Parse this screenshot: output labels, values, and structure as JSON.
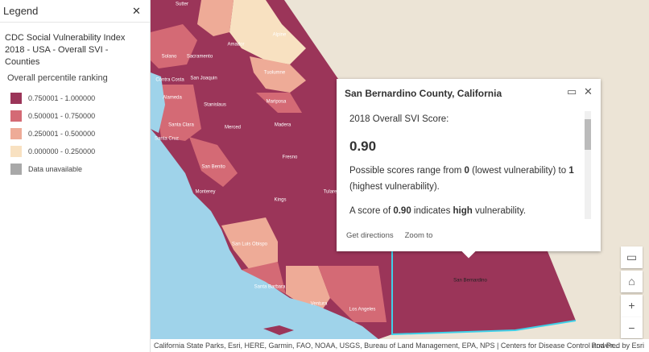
{
  "legend": {
    "title": "Legend",
    "layer_title": "CDC Social Vulnerability Index 2018 - USA - Overall SVI - Counties",
    "field": "Overall percentile ranking",
    "items": [
      {
        "label": "0.750001 - 1.000000",
        "color": "#9b3559"
      },
      {
        "label": "0.500001 - 0.750000",
        "color": "#d46a75"
      },
      {
        "label": "0.250001 - 0.500000",
        "color": "#eeab97"
      },
      {
        "label": "0.000000 - 0.250000",
        "color": "#f8e1c1"
      },
      {
        "label": "Data unavailable",
        "color": "#a8a8a8"
      }
    ]
  },
  "popup": {
    "title": "San Bernardino County, California",
    "score_label": "2018 Overall SVI Score:",
    "score": "0.90",
    "range_text": [
      {
        "text": "Possible scores range from "
      },
      {
        "text": "0",
        "bold": true
      },
      {
        "text": " (lowest vulnerability) to "
      },
      {
        "text": "1",
        "bold": true
      },
      {
        "text": " (highest vulnerability)."
      }
    ],
    "summary": [
      {
        "text": "A score of "
      },
      {
        "text": "0.90",
        "bold": true
      },
      {
        "text": " indicates "
      },
      {
        "text": "high",
        "bold": true
      },
      {
        "text": " vulnerability."
      }
    ],
    "actions": [
      "Get directions",
      "Zoom to"
    ]
  },
  "map": {
    "labels": [
      "Sutter",
      "Alpine",
      "Solano",
      "Sacramento",
      "Amador",
      "Tuolumne",
      "Contra Costa",
      "San Joaquin",
      "Alameda",
      "Stanislaus",
      "Mariposa",
      "Santa Clara",
      "Merced",
      "Madera",
      "Santa Cruz",
      "Fresno",
      "San Benito",
      "Monterey",
      "Kings",
      "Tulare",
      "San Luis Obispo",
      "Santa Barbara",
      "Ventura",
      "Los Angeles",
      "San Bernardino"
    ]
  },
  "attribution": "California State Parks, Esri, HERE, Garmin, FAO, NOAA, USGS, Bureau of Land Management, EPA, NPS | Centers for Disease Control and Pr...",
  "powered_by": "Powered by Esri"
}
